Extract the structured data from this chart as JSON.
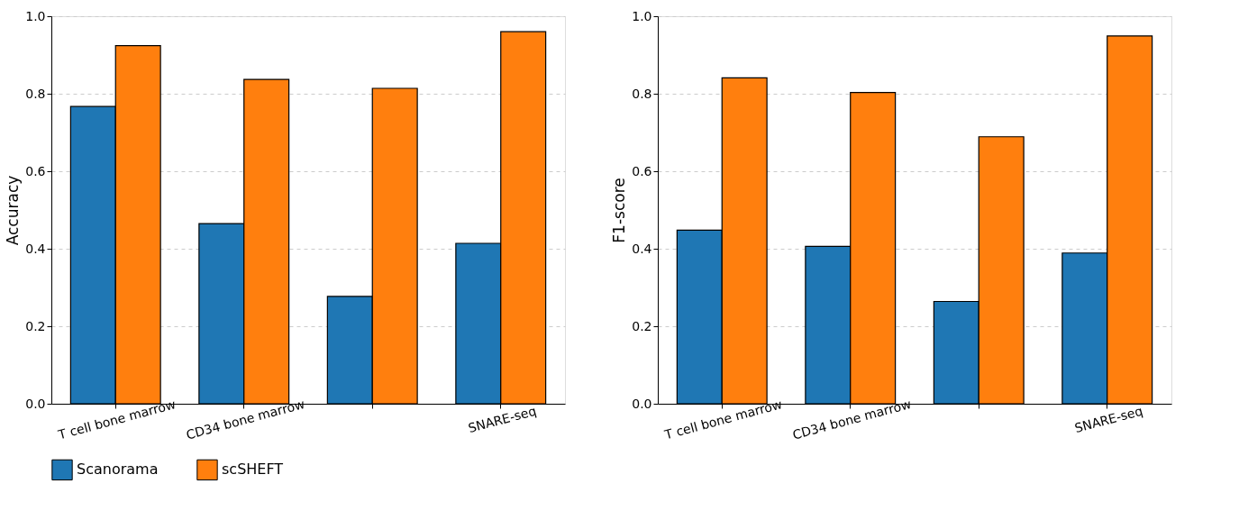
{
  "chart_data": [
    {
      "type": "bar",
      "ylabel": "Accuracy",
      "categories": [
        "T cell bone marrow",
        "CD34 bone marrow",
        null,
        "SNARE-seq"
      ],
      "series": [
        {
          "name": "Scanorama",
          "color": "#1f77b4",
          "values": [
            0.767,
            0.465,
            0.277,
            0.414
          ]
        },
        {
          "name": "scSHEFT",
          "color": "#ff7f0e",
          "values": [
            0.924,
            0.837,
            0.814,
            0.96
          ]
        }
      ],
      "ylim": [
        0,
        1
      ],
      "yticks": [
        {
          "value": 0,
          "label": "0.0"
        },
        {
          "value": 0.2,
          "label": "0.2"
        },
        {
          "value": 0.4,
          "label": "0.4"
        },
        {
          "value": 0.6,
          "label": "0.6"
        },
        {
          "value": 0.8,
          "label": "0.8"
        },
        {
          "value": 1,
          "label": "1.0"
        }
      ],
      "grid": "y",
      "legend": "bottom"
    },
    {
      "type": "bar",
      "ylabel": "F1-score",
      "categories": [
        "T cell bone marrow",
        "CD34 bone marrow",
        null,
        "SNARE-seq"
      ],
      "series": [
        {
          "name": "Scanorama",
          "color": "#1f77b4",
          "values": [
            0.448,
            0.406,
            0.264,
            0.389
          ]
        },
        {
          "name": "scSHEFT",
          "color": "#ff7f0e",
          "values": [
            0.841,
            0.803,
            0.689,
            0.949
          ]
        }
      ],
      "ylim": [
        0,
        1
      ],
      "yticks": [
        {
          "value": 0,
          "label": "0.0"
        },
        {
          "value": 0.2,
          "label": "0.2"
        },
        {
          "value": 0.4,
          "label": "0.4"
        },
        {
          "value": 0.6,
          "label": "0.6"
        },
        {
          "value": 0.8,
          "label": "0.8"
        },
        {
          "value": 1,
          "label": "1.0"
        }
      ],
      "grid": "y",
      "legend": "bottom"
    }
  ]
}
